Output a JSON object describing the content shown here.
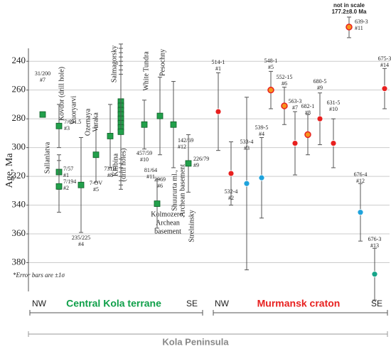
{
  "chart_data": {
    "type": "errorbar",
    "y_label": "Age, Ma",
    "ylim": [
      231,
      400
    ],
    "yticks": [
      240,
      260,
      280,
      300,
      320,
      340,
      360,
      380
    ],
    "grid": true,
    "inverted": true,
    "note": "*Error bars are ±1σ",
    "off_scale_note": "not in scale",
    "region": "Kola Peninsula",
    "groups": [
      {
        "name": "Central Kola terrane",
        "color": "#10a04a",
        "ends": [
          "NW",
          "SE"
        ]
      },
      {
        "name": "Murmansk craton",
        "color": "#e8201f",
        "ends": [
          "NW",
          "SE"
        ]
      }
    ],
    "localities": [
      [
        "Sallanlatva"
      ],
      [
        "Kovdor (drill hole)"
      ],
      [
        "Vuoryarvi"
      ],
      [
        "Ozernaya",
        "Varaka"
      ],
      [
        "Salmagorsky"
      ],
      [
        "Khibina",
        "(drill holes)"
      ],
      [
        "White Tundra"
      ],
      [
        "Pesochny"
      ],
      [
        "Shuururta ml.,",
        "Archean basement"
      ],
      [
        "Strelninsky"
      ],
      [
        "Kolmozero,",
        "Archean",
        "basement"
      ]
    ],
    "samples": [
      {
        "id": "31/200",
        "no": "#7",
        "age": 277,
        "error": 0,
        "color": "#22a04b",
        "marker": "square"
      },
      {
        "id": "7/691.5",
        "no": "#3",
        "age": 285,
        "error": 15,
        "color": "#22a04b",
        "marker": "square"
      },
      {
        "id": "7/57",
        "no": "#1",
        "age": 317,
        "error": 12,
        "color": "#22a04b",
        "marker": "square"
      },
      {
        "id": "7/194",
        "no": "#2",
        "age": 327,
        "error": 18,
        "color": "#22a04b",
        "marker": "square"
      },
      {
        "id": "235/225",
        "no": "#4",
        "age": 326,
        "error": 33,
        "color": "#22a04b",
        "marker": "square"
      },
      {
        "id": "7-OV",
        "no": "#5",
        "age": 305,
        "error": 19,
        "color": "#22a04b",
        "marker": "square"
      },
      {
        "id": "731B",
        "no": "#8",
        "age": 292,
        "error": 22,
        "color": "#22a04b",
        "marker": "square"
      },
      {
        "age": 268,
        "error": 40,
        "color": "#22a04b",
        "marker": "square"
      },
      {
        "age": 271,
        "error": 40,
        "color": "#22a04b",
        "marker": "square"
      },
      {
        "age": 274,
        "error": 40,
        "color": "#22a04b",
        "marker": "square"
      },
      {
        "age": 277,
        "error": 40,
        "color": "#22a04b",
        "marker": "square"
      },
      {
        "age": 280,
        "error": 40,
        "color": "#22a04b",
        "marker": "square"
      },
      {
        "age": 283,
        "error": 40,
        "color": "#22a04b",
        "marker": "square"
      },
      {
        "age": 286,
        "error": 40,
        "color": "#22a04b",
        "marker": "square"
      },
      {
        "age": 289,
        "error": 40,
        "color": "#22a04b",
        "marker": "square"
      },
      {
        "id": "457/59",
        "no": "#10",
        "age": 284,
        "error": 17,
        "color": "#22a04b",
        "marker": "square"
      },
      {
        "id": "2969",
        "no": "#6",
        "age": 278,
        "error": 27,
        "color": "#22a04b",
        "marker": "square"
      },
      {
        "id": "81/64",
        "no": "#11",
        "age": 339,
        "error": 17,
        "color": "#22a04b",
        "marker": "square"
      },
      {
        "id": "142/69",
        "no": "#12",
        "age": 284,
        "error": 30,
        "color": "#22a04b",
        "marker": "square"
      },
      {
        "id": "226/79",
        "no": "#9",
        "age": 311,
        "error": 20,
        "color": "#22a04b",
        "marker": "square"
      },
      {
        "id": "514-1",
        "no": "#1",
        "age": 275,
        "error": 27,
        "color": "#e8201f",
        "marker": "circle"
      },
      {
        "id": "532-4",
        "no": "#2",
        "age": 318,
        "error": 22,
        "color": "#e8201f",
        "marker": "circle"
      },
      {
        "id": "533-4",
        "no": "#3",
        "age": 325,
        "error": 60,
        "color": "#1fa3dc",
        "marker": "circle"
      },
      {
        "id": "539-5",
        "no": "#4",
        "age": 321,
        "error": 28,
        "color": "#1fa3dc",
        "marker": "circle"
      },
      {
        "id": "548-1",
        "no": "#5",
        "age": 260,
        "error": 13,
        "color": "#f7941d",
        "marker": "circle"
      },
      {
        "id": "552-15",
        "no": "#6",
        "age": 271,
        "error": 13,
        "color": "#f7941d",
        "marker": "circle"
      },
      {
        "id": "563-3",
        "no": "#7",
        "age": 297,
        "error": 22,
        "color": "#e8201f",
        "marker": "circle"
      },
      {
        "id": "682-1",
        "no": "#8",
        "age": 291,
        "error": 14,
        "color": "#f7941d",
        "marker": "circle"
      },
      {
        "id": "680-5",
        "no": "#9",
        "age": 280,
        "error": 18,
        "color": "#e8201f",
        "marker": "circle"
      },
      {
        "id": "631-5",
        "no": "#10",
        "age": 297,
        "error": 17,
        "color": "#e8201f",
        "marker": "circle"
      },
      {
        "id": "676-4",
        "no": "#12",
        "age": 345,
        "error": 20,
        "color": "#1fa3dc",
        "marker": "circle"
      },
      {
        "id": "676-3",
        "no": "#13",
        "age": 388,
        "error": 18,
        "color": "#17a589",
        "marker": "circle"
      },
      {
        "id": "675-3",
        "no": "#14",
        "age": 259,
        "error": 14,
        "color": "#e8201f",
        "marker": "circle"
      },
      {
        "id": "639-3",
        "no": "#11",
        "age": 177.2,
        "error": 8.0,
        "value_label": "177.2±8.0 Ma",
        "color": "#f7941d",
        "marker": "circle",
        "off_scale": true
      }
    ]
  }
}
